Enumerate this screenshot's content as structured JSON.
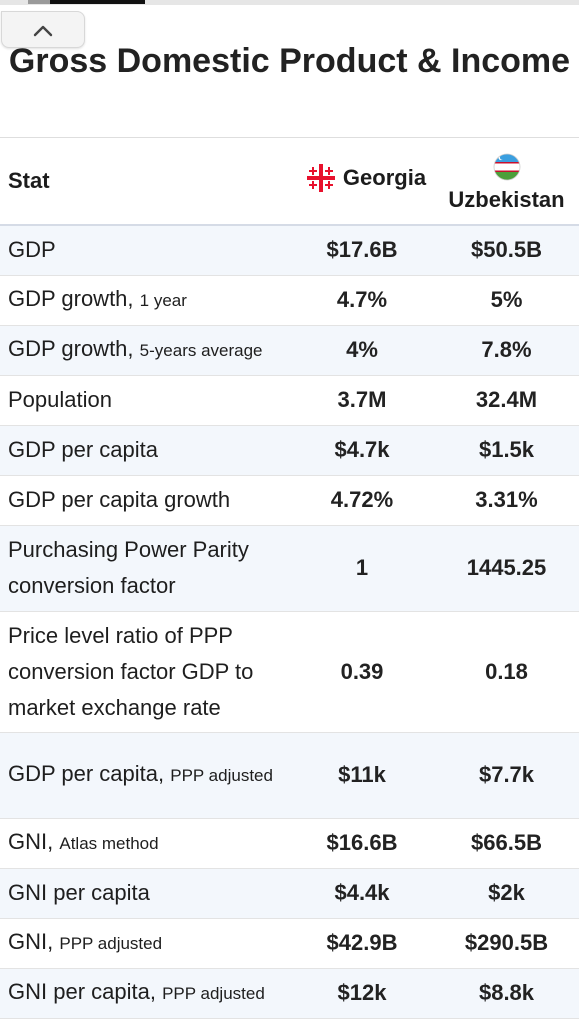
{
  "page": {
    "title": "Gross Domestic Product & Income",
    "collapse_icon": "chevron-up-icon"
  },
  "table": {
    "header": {
      "stat": "Stat",
      "country1": {
        "name": "Georgia",
        "flag_icon": "georgia-flag-icon"
      },
      "country2": {
        "name": "Uzbekistan",
        "flag_icon": "uzbekistan-flag-icon"
      }
    },
    "rows": [
      {
        "label": "GDP",
        "sub": "",
        "georgia": "$17.6B",
        "uzbekistan": "$50.5B"
      },
      {
        "label": "GDP growth,",
        "sub": "1 year",
        "georgia": "4.7%",
        "uzbekistan": "5%"
      },
      {
        "label": "GDP growth,",
        "sub": "5-years average",
        "georgia": "4%",
        "uzbekistan": "7.8%"
      },
      {
        "label": "Population",
        "sub": "",
        "georgia": "3.7M",
        "uzbekistan": "32.4M"
      },
      {
        "label": "GDP per capita",
        "sub": "",
        "georgia": "$4.7k",
        "uzbekistan": "$1.5k"
      },
      {
        "label": "GDP per capita growth",
        "sub": "",
        "georgia": "4.72%",
        "uzbekistan": "3.31%"
      },
      {
        "label": "Purchasing Power Parity conversion factor",
        "sub": "",
        "georgia": "1",
        "uzbekistan": "1445.25"
      },
      {
        "label": "Price level ratio of PPP conversion factor GDP to market exchange rate",
        "sub": "",
        "georgia": "0.39",
        "uzbekistan": "0.18"
      },
      {
        "label": "GDP per capita,",
        "sub": "PPP adjusted",
        "georgia": "$11k",
        "uzbekistan": "$7.7k"
      },
      {
        "label": "GNI,",
        "sub": "Atlas method",
        "georgia": "$16.6B",
        "uzbekistan": "$66.5B"
      },
      {
        "label": "GNI per capita",
        "sub": "",
        "georgia": "$4.4k",
        "uzbekistan": "$2k"
      },
      {
        "label": "GNI,",
        "sub": "PPP adjusted",
        "georgia": "$42.9B",
        "uzbekistan": "$290.5B"
      },
      {
        "label": "GNI per capita,",
        "sub": "PPP adjusted",
        "georgia": "$12k",
        "uzbekistan": "$8.8k"
      }
    ]
  },
  "colors": {
    "row_alt_bg": "#f3f7fc",
    "georgia_flag_red": "#e8112d",
    "uzbekistan_blue": "#3a9fe0",
    "uzbekistan_green": "#4ca03a"
  }
}
